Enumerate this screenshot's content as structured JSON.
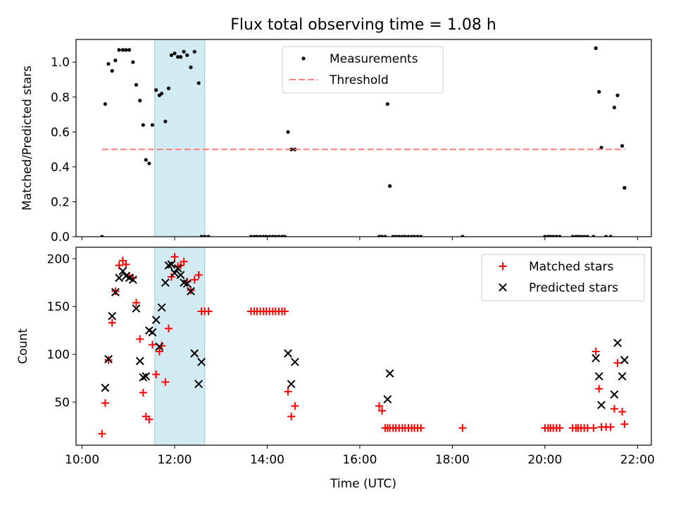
{
  "chart_data": {
    "title": "Flux total observing time = 1.08 h",
    "xlabel": "Time (UTC)",
    "x_unit": "hours UTC",
    "xlim": [
      9.87,
      22.3
    ],
    "x_ticks": [
      {
        "v": 10,
        "label": "10:00"
      },
      {
        "v": 12,
        "label": "12:00"
      },
      {
        "v": 14,
        "label": "14:00"
      },
      {
        "v": 16,
        "label": "16:00"
      },
      {
        "v": 18,
        "label": "18:00"
      },
      {
        "v": 20,
        "label": "20:00"
      },
      {
        "v": 22,
        "label": "22:00"
      }
    ],
    "shaded_span": [
      11.57,
      12.65
    ],
    "shaded_color": "#add8e6",
    "panels": [
      {
        "type": "scatter",
        "ylabel": "Matched/Predicted stars",
        "ylim": [
          0,
          1.13
        ],
        "y_ticks": [
          0.0,
          0.2,
          0.4,
          0.6,
          0.8,
          1.0
        ],
        "y_tick_labels": [
          "0.0",
          "0.2",
          "0.4",
          "0.6",
          "0.8",
          "1.0"
        ],
        "legend_position": "top-center",
        "series": [
          {
            "name": "Measurements",
            "marker": "dot",
            "color": "#000000",
            "x": [
              10.43,
              10.5,
              10.57,
              10.65,
              10.72,
              10.8,
              10.88,
              10.95,
              11.02,
              11.1,
              11.17,
              11.25,
              11.32,
              11.38,
              11.45,
              11.52,
              11.6,
              11.67,
              11.72,
              11.8,
              11.87,
              11.93,
              12.0,
              12.07,
              12.13,
              12.2,
              12.27,
              12.35,
              12.43,
              12.52,
              12.58,
              12.65,
              12.73,
              13.65,
              13.72,
              13.78,
              13.85,
              13.92,
              13.98,
              14.05,
              14.12,
              14.18,
              14.25,
              14.32,
              14.38,
              14.45,
              14.52,
              14.6,
              16.42,
              16.48,
              16.55,
              16.6,
              16.65,
              16.72,
              16.78,
              16.85,
              16.92,
              16.98,
              17.05,
              17.12,
              17.18,
              17.25,
              17.32,
              18.22,
              20.0,
              20.07,
              20.12,
              20.18,
              20.25,
              20.32,
              20.6,
              20.67,
              20.72,
              20.78,
              20.85,
              20.92,
              21.05,
              21.1,
              21.17,
              21.22,
              21.32,
              21.42,
              21.5,
              21.57,
              21.67,
              21.72
            ],
            "y": [
              0.0,
              0.76,
              0.99,
              0.95,
              1.01,
              1.07,
              1.07,
              1.07,
              1.07,
              1.0,
              0.87,
              0.78,
              0.64,
              0.44,
              0.42,
              0.64,
              0.84,
              0.81,
              0.82,
              0.66,
              0.85,
              1.04,
              1.05,
              1.03,
              1.03,
              1.06,
              1.04,
              0.97,
              1.06,
              0.88,
              0.0,
              0.0,
              0.0,
              0.0,
              0.0,
              0.0,
              0.0,
              0.0,
              0.0,
              0.0,
              0.0,
              0.0,
              0.0,
              0.0,
              0.0,
              0.6,
              0.5,
              0.5,
              0.0,
              0.0,
              0.0,
              0.76,
              0.29,
              0.0,
              0.0,
              0.0,
              0.0,
              0.0,
              0.0,
              0.0,
              0.0,
              0.0,
              0.0,
              0.0,
              0.0,
              0.0,
              0.0,
              0.0,
              0.0,
              0.0,
              0.0,
              0.0,
              0.0,
              0.0,
              0.0,
              0.0,
              0.0,
              1.08,
              0.83,
              0.51,
              0.0,
              0.0,
              0.74,
              0.81,
              0.52,
              0.28
            ]
          },
          {
            "name": "Threshold",
            "marker": "dashed-line",
            "color": "#ff7f7f",
            "x": [
              10.43,
              21.72
            ],
            "y": [
              0.5,
              0.5
            ]
          }
        ]
      },
      {
        "type": "scatter",
        "ylabel": "Count",
        "ylim": [
          5,
          212
        ],
        "y_ticks": [
          50,
          100,
          150,
          200
        ],
        "y_tick_labels": [
          "50",
          "100",
          "150",
          "200"
        ],
        "legend_position": "top-right",
        "series": [
          {
            "name": "Matched stars",
            "marker": "plus",
            "color": "#ff0000",
            "x": [
              10.43,
              10.5,
              10.57,
              10.65,
              10.72,
              10.8,
              10.88,
              10.95,
              11.02,
              11.1,
              11.17,
              11.25,
              11.32,
              11.38,
              11.45,
              11.52,
              11.6,
              11.67,
              11.72,
              11.8,
              11.87,
              11.93,
              12.0,
              12.07,
              12.13,
              12.2,
              12.27,
              12.35,
              12.43,
              12.52,
              12.58,
              12.65,
              12.73,
              13.65,
              13.72,
              13.78,
              13.85,
              13.92,
              13.98,
              14.05,
              14.12,
              14.18,
              14.25,
              14.32,
              14.38,
              14.45,
              14.52,
              14.6,
              16.42,
              16.48,
              16.55,
              16.6,
              16.65,
              16.72,
              16.78,
              16.85,
              16.92,
              16.98,
              17.05,
              17.12,
              17.18,
              17.25,
              17.32,
              18.22,
              20.0,
              20.07,
              20.12,
              20.18,
              20.25,
              20.32,
              20.6,
              20.67,
              20.72,
              20.78,
              20.85,
              20.92,
              21.05,
              21.1,
              21.17,
              21.22,
              21.32,
              21.42,
              21.5,
              21.57,
              21.67,
              21.72
            ],
            "y": [
              17,
              49,
              94,
              133,
              166,
              193,
              198,
              194,
              182,
              180,
              154,
              116,
              60,
              35,
              32,
              110,
              79,
              103,
              109,
              71,
              127,
              181,
              202,
              192,
              193,
              197,
              176,
              167,
              178,
              183,
              145,
              145,
              145,
              145,
              145,
              145,
              145,
              145,
              145,
              145,
              145,
              145,
              145,
              145,
              145,
              61,
              35,
              46,
              46,
              41,
              23,
              23,
              23,
              23,
              23,
              23,
              23,
              23,
              23,
              23,
              23,
              23,
              23,
              23,
              23,
              23,
              23,
              23,
              23,
              23,
              23,
              23,
              23,
              23,
              23,
              23,
              23,
              103,
              64,
              24,
              24,
              24,
              43,
              91,
              40,
              27
            ]
          },
          {
            "name": "Predicted stars",
            "marker": "x",
            "color": "#000000",
            "x": [
              10.5,
              10.57,
              10.65,
              10.72,
              10.8,
              10.88,
              10.95,
              11.02,
              11.1,
              11.17,
              11.25,
              11.32,
              11.38,
              11.45,
              11.52,
              11.6,
              11.67,
              11.72,
              11.8,
              11.87,
              11.93,
              12.0,
              12.07,
              12.13,
              12.2,
              12.27,
              12.35,
              12.43,
              12.52,
              12.58,
              14.45,
              14.52,
              14.6,
              16.6,
              16.65,
              21.1,
              21.17,
              21.22,
              21.5,
              21.57,
              21.67,
              21.72
            ],
            "y": [
              65,
              95,
              140,
              165,
              180,
              187,
              182,
              180,
              178,
              148,
              93,
              76,
              77,
              125,
              123,
              136,
              108,
              149,
              175,
              193,
              194,
              185,
              190,
              183,
              175,
              174,
              166,
              101,
              69,
              92,
              101,
              69,
              92,
              53,
              80,
              96,
              77,
              47,
              58,
              112,
              77,
              94
            ]
          }
        ]
      }
    ]
  }
}
